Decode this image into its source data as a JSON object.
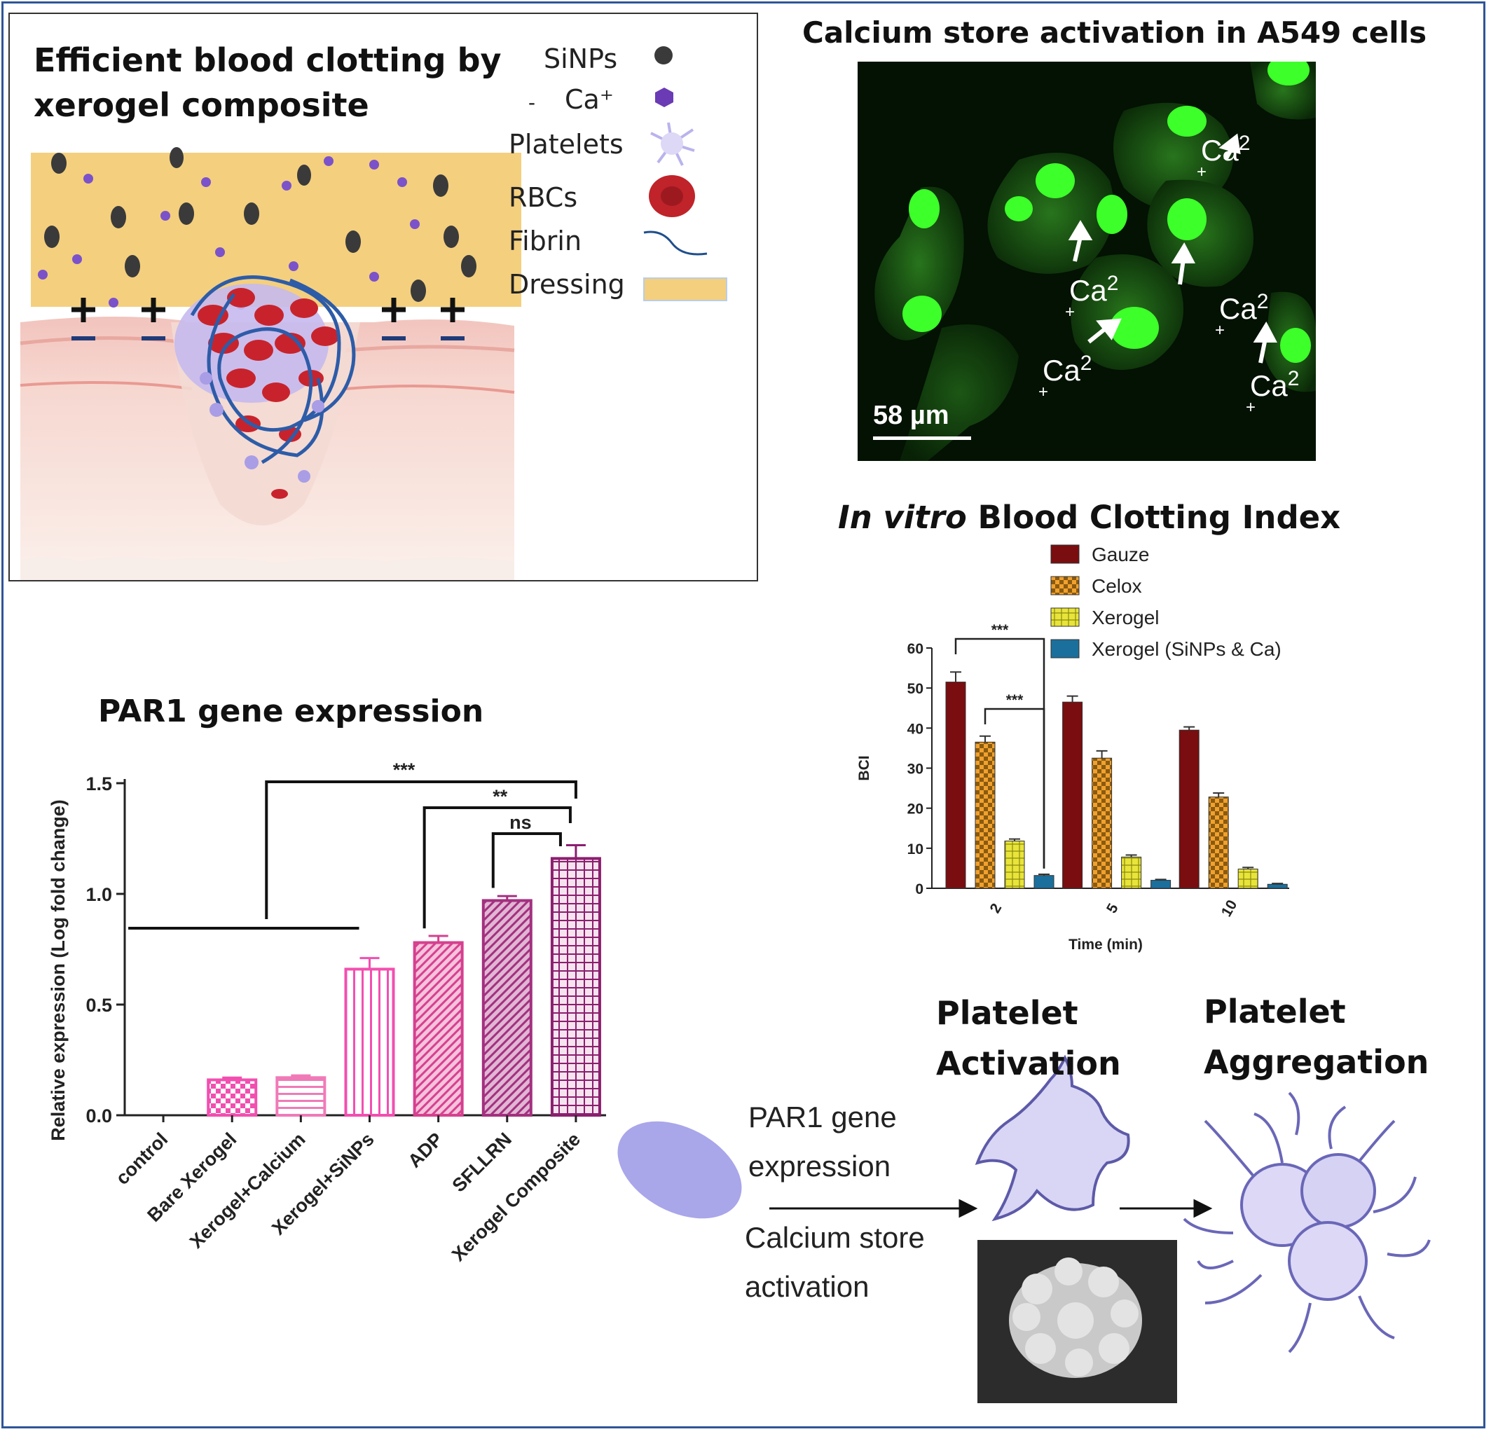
{
  "panel_a": {
    "title_line1": "Efficient blood clotting by",
    "title_line2": "xerogel composite",
    "legend": [
      {
        "label": "SiNPs",
        "icon": "dark-particle-icon",
        "color": "#3a3a3a"
      },
      {
        "label": "Ca⁺",
        "icon": "hexagon-icon",
        "color": "#6a3bb5"
      },
      {
        "label": "Platelets",
        "icon": "platelet-icon",
        "color": "#b9b3ec"
      },
      {
        "label": "RBCs",
        "icon": "rbc-icon",
        "color": "#c0232a"
      },
      {
        "label": "Fibrin",
        "icon": "fibrin-icon",
        "color": "#1f4e8c"
      },
      {
        "label": "Dressing",
        "icon": "dressing-swatch-icon",
        "color": "#f4cf7e"
      }
    ],
    "legend_dash": "-",
    "plus_sign": "+",
    "minus_sign": "–"
  },
  "micrograph": {
    "title": "Calcium store activation in A549 cells",
    "ca_label": "Ca",
    "ca_superscript": "2",
    "ca_plus": "+",
    "scale_bar": "58 µm"
  },
  "bci": {
    "title_italic": "In vitro",
    "title_rest": "Blood Clotting Index",
    "chart_data": {
      "type": "bar",
      "categories": [
        "2",
        "5",
        "10"
      ],
      "series": [
        {
          "name": "Gauze",
          "values": [
            51.5,
            46.5,
            39.5
          ],
          "errors": [
            2.5,
            1.5,
            0.8
          ],
          "color": "#7a0d0f"
        },
        {
          "name": "Celox",
          "values": [
            36.5,
            32.5,
            22.8
          ],
          "errors": [
            1.5,
            1.8,
            1.0
          ],
          "color": "#e89a2a"
        },
        {
          "name": "Xerogel",
          "values": [
            11.8,
            7.8,
            4.8
          ],
          "errors": [
            0.5,
            0.5,
            0.4
          ],
          "color": "#e6e23a"
        },
        {
          "name": "Xerogel (SiNPs & Ca)",
          "values": [
            3.2,
            2.0,
            1.0
          ],
          "errors": [
            0.3,
            0.2,
            0.2
          ],
          "color": "#1b6f9c"
        }
      ],
      "ylabel": "BCI",
      "xlabel": "Time (min)",
      "ylim": [
        0,
        60
      ],
      "yticks": [
        "0",
        "10",
        "20",
        "30",
        "40",
        "50",
        "60"
      ],
      "significance": [
        "***",
        "***"
      ],
      "legend_position": "top"
    }
  },
  "par1": {
    "title": "PAR1 gene expression",
    "chart_data": {
      "type": "bar",
      "categories": [
        "control",
        "Bare Xerogel",
        "Xerogel+Calcium",
        "Xerogel+SiNPs",
        "ADP",
        "SFLLRN",
        "Xerogel Composite"
      ],
      "values": [
        0.0,
        0.16,
        0.17,
        0.66,
        0.78,
        0.97,
        1.16
      ],
      "errors": [
        0.0,
        0.01,
        0.01,
        0.05,
        0.03,
        0.02,
        0.06
      ],
      "colors": [
        "#f24fb0",
        "#f24fb0",
        "#f07ab8",
        "#f24fb0",
        "#d6408f",
        "#a3307f",
        "#8a1f6e"
      ],
      "ylabel": "Relative expression (Log fold change)",
      "ylim": [
        0,
        1.5
      ],
      "yticks": [
        "0.0",
        "0.5",
        "1.0",
        "1.5"
      ],
      "significance": [
        "***",
        "**",
        "ns"
      ]
    }
  },
  "pathway": {
    "arrow1_top_label_line1": "PAR1 gene",
    "arrow1_top_label_line2": "expression",
    "arrow1_bottom_label_line1": "Calcium store",
    "arrow1_bottom_label_line2": "activation",
    "activation_title_line1": "Platelet",
    "activation_title_line2": "Activation",
    "aggregation_title_line1": "Platelet",
    "aggregation_title_line2": "Aggregation"
  }
}
